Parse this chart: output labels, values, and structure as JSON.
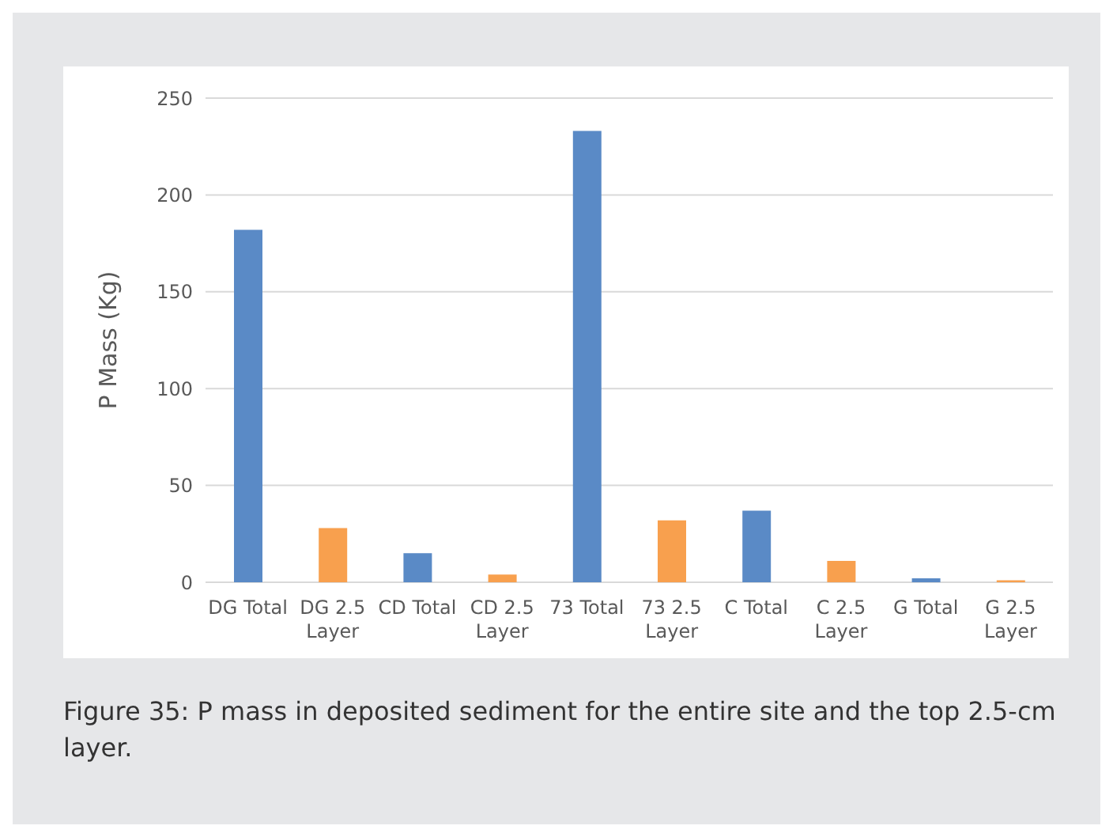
{
  "chart_data": {
    "type": "bar",
    "ylabel": "P Mass (Kg)",
    "categories": [
      "DG Total",
      "DG 2.5 Layer",
      "CD Total",
      "CD 2.5 Layer",
      "73 Total",
      "73 2.5 Layer",
      "C Total",
      "C 2.5 Layer",
      "G Total",
      "G 2.5 Layer"
    ],
    "values": [
      182,
      28,
      15,
      4,
      233,
      32,
      37,
      11,
      2,
      1
    ],
    "colors": [
      "#5a8ac6",
      "#f8a04e",
      "#5a8ac6",
      "#f8a04e",
      "#5a8ac6",
      "#f8a04e",
      "#5a8ac6",
      "#f8a04e",
      "#5a8ac6",
      "#f8a04e"
    ],
    "ylim": [
      0,
      250
    ],
    "yticks": [
      0,
      50,
      100,
      150,
      200,
      250
    ],
    "grid": "y",
    "annotations": [
      "Figure 35: P mass in deposited sediment for the entire site and the top 2.5-cm layer."
    ]
  }
}
